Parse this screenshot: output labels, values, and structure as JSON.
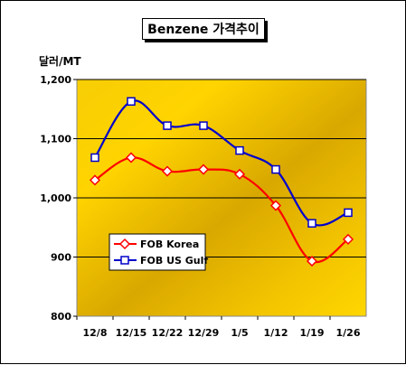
{
  "chart_data": {
    "type": "line",
    "title": "Benzene 가격추이",
    "ylabel": "달러/MT",
    "xlabel": "",
    "categories": [
      "12/8",
      "12/15",
      "12/22",
      "12/29",
      "1/5",
      "1/12",
      "1/19",
      "1/26"
    ],
    "ylim": [
      800,
      1200
    ],
    "yticks": [
      800,
      900,
      1000,
      1100,
      1200
    ],
    "ytick_labels": [
      "800",
      "900",
      "1,000",
      "1,100",
      "1,200"
    ],
    "grid": true,
    "legend_position": "bottom-left",
    "series": [
      {
        "name": "FOB Korea",
        "color": "#ff0000",
        "marker": "diamond",
        "values": [
          1030,
          1068,
          1045,
          1048,
          1040,
          987,
          893,
          930
        ]
      },
      {
        "name": "FOB US Gulf",
        "color": "#0000cc",
        "marker": "square",
        "values": [
          1068,
          1163,
          1122,
          1122,
          1080,
          1048,
          957,
          975
        ]
      }
    ]
  }
}
